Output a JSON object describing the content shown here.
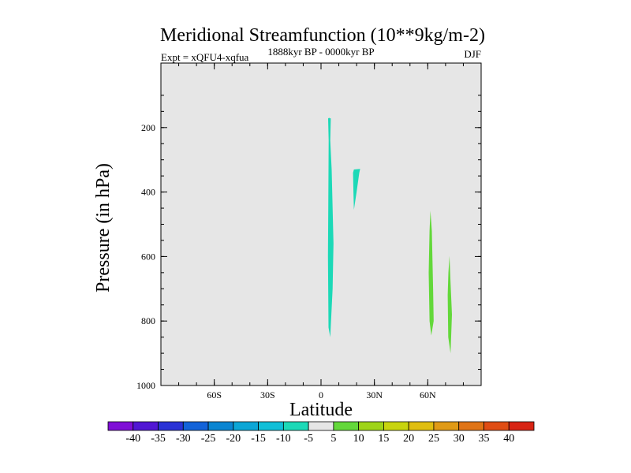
{
  "chart_data": {
    "type": "contour",
    "title": "Meridional Streamfunction (10**9kg/m-2)",
    "subtitle_left": "Expt = xQFU4-xqfua",
    "subtitle_center": "1888kyr BP - 0000kyr BP",
    "subtitle_right": "DJF",
    "xlabel": "Latitude",
    "ylabel": "Pressure (in hPa)",
    "xlim": [
      -90,
      90
    ],
    "ylim": [
      1000,
      0
    ],
    "x_ticks": [
      {
        "value": -60,
        "label": "60S"
      },
      {
        "value": -30,
        "label": "30S"
      },
      {
        "value": 0,
        "label": "0"
      },
      {
        "value": 30,
        "label": "30N"
      },
      {
        "value": 60,
        "label": "60N"
      }
    ],
    "y_ticks": [
      {
        "value": 200,
        "label": "200"
      },
      {
        "value": 400,
        "label": "400"
      },
      {
        "value": 600,
        "label": "600"
      },
      {
        "value": 800,
        "label": "800"
      },
      {
        "value": 1000,
        "label": "1000"
      }
    ],
    "background_color": "#e6e6e6",
    "regions": [
      {
        "level": -5,
        "color": "#1cd9b7",
        "points": [
          [
            4.5,
            170
          ],
          [
            5.5,
            172
          ],
          [
            5.2,
            240
          ],
          [
            6,
            330
          ],
          [
            7,
            560
          ],
          [
            6.5,
            700
          ],
          [
            5.2,
            850
          ],
          [
            4.2,
            820
          ],
          [
            3.9,
            600
          ],
          [
            4.1,
            450
          ],
          [
            4.3,
            240
          ],
          [
            4,
            172
          ]
        ]
      },
      {
        "level": -5,
        "color": "#1cd9b7",
        "points": [
          [
            18.5,
            330
          ],
          [
            22,
            328
          ],
          [
            21.5,
            340
          ],
          [
            20,
            400
          ],
          [
            18.5,
            455
          ],
          [
            18.2,
            400
          ],
          [
            18,
            340
          ]
        ]
      },
      {
        "level": 10,
        "color": "#63d83a",
        "points": [
          [
            61.5,
            458
          ],
          [
            62.3,
            520
          ],
          [
            63,
            700
          ],
          [
            63.3,
            800
          ],
          [
            62,
            845
          ],
          [
            61,
            800
          ],
          [
            60.5,
            650
          ],
          [
            61,
            520
          ]
        ]
      },
      {
        "level": 10,
        "color": "#63d83a",
        "points": [
          [
            72.2,
            598
          ],
          [
            72.8,
            680
          ],
          [
            73.6,
            780
          ],
          [
            72.8,
            900
          ],
          [
            71.5,
            850
          ],
          [
            71.2,
            720
          ],
          [
            71.6,
            650
          ]
        ]
      }
    ],
    "colorbar": {
      "labels": [
        "-40",
        "-35",
        "-30",
        "-25",
        "-20",
        "-15",
        "-10",
        "-5",
        "5",
        "10",
        "15",
        "20",
        "25",
        "30",
        "35",
        "40"
      ],
      "colors": [
        "#7f0ed7",
        "#5116d4",
        "#2a32d6",
        "#1363d9",
        "#0a85d2",
        "#0ba6d6",
        "#10bfd8",
        "#1cd9b7",
        "#e6e6e6",
        "#63d83a",
        "#9ed418",
        "#c8d40e",
        "#e0be10",
        "#e09a16",
        "#e07416",
        "#e04d14",
        "#d82414"
      ]
    }
  }
}
